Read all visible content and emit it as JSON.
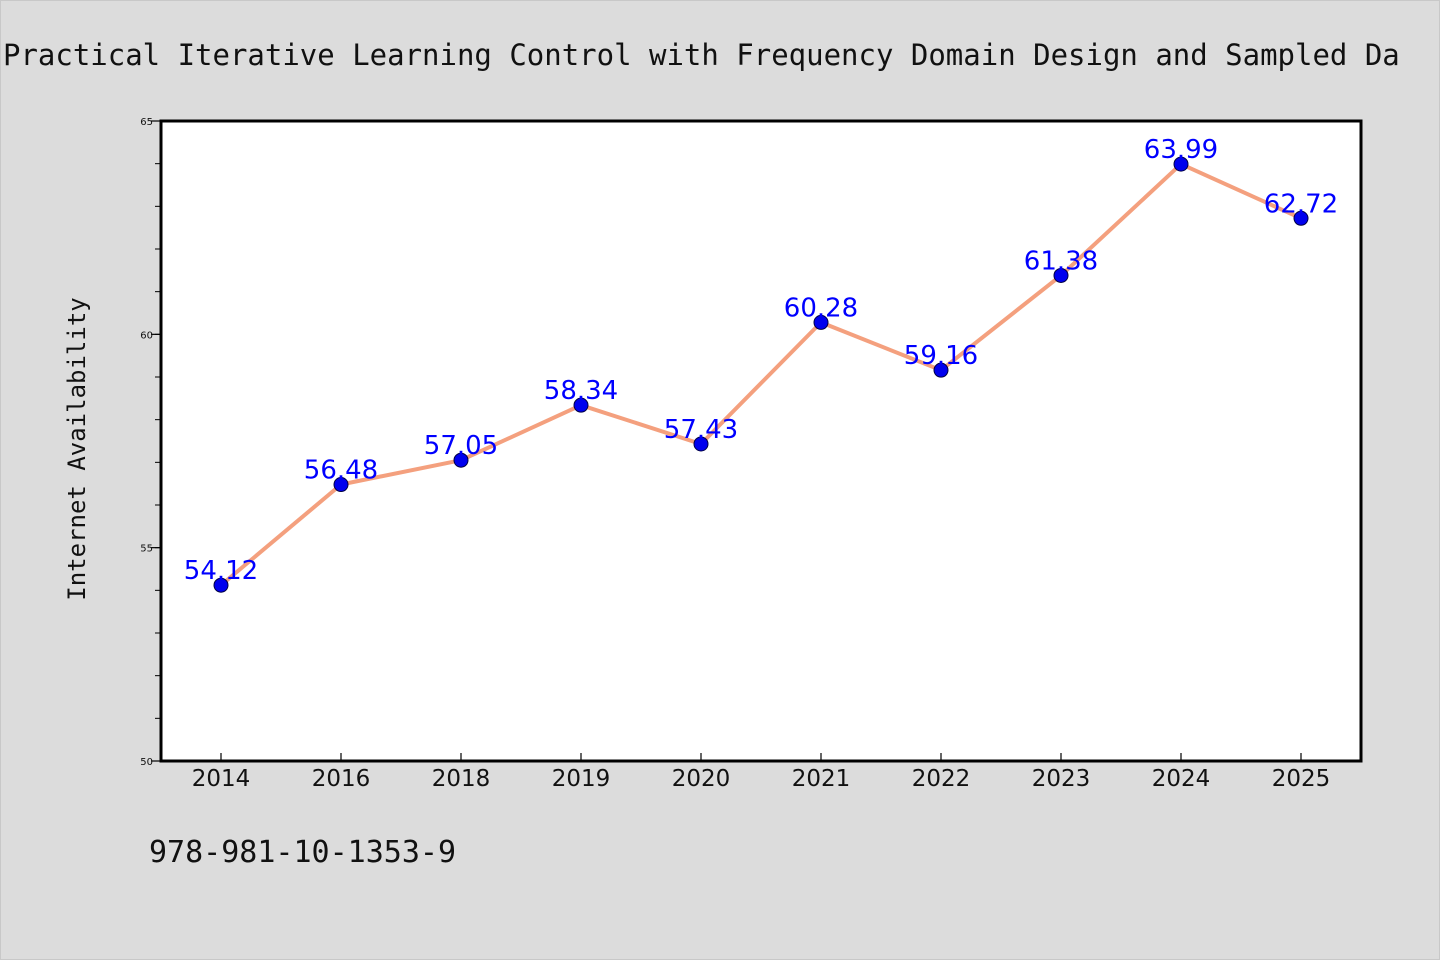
{
  "chart_data": {
    "type": "line",
    "title": "Practical Iterative Learning Control with Frequency Domain Design and Sampled Da",
    "xlabel": "",
    "ylabel": "Internet Availability",
    "categories": [
      "2014",
      "2016",
      "2018",
      "2019",
      "2020",
      "2021",
      "2022",
      "2023",
      "2024",
      "2025"
    ],
    "series": [
      {
        "values": [
          54.12,
          56.48,
          57.05,
          58.34,
          57.43,
          60.28,
          59.16,
          61.38,
          63.99,
          62.72
        ]
      }
    ],
    "data_labels": [
      "54.12",
      "56.48",
      "57.05",
      "58.34",
      "57.43",
      "60.28",
      "59.16",
      "61.38",
      "63.99",
      "62.72"
    ],
    "ylim": [
      50,
      65
    ],
    "y_ticks": [
      "50",
      "55",
      "60",
      "65"
    ],
    "grid": false,
    "legend": "none",
    "colors": {
      "line": "#f4a07e",
      "marker": "#0000ee",
      "data_label": "#0000ff",
      "background": "#dcdcdc",
      "plot_area": "#ffffff"
    }
  },
  "footer": {
    "isbn": "978-981-10-1353-9"
  }
}
